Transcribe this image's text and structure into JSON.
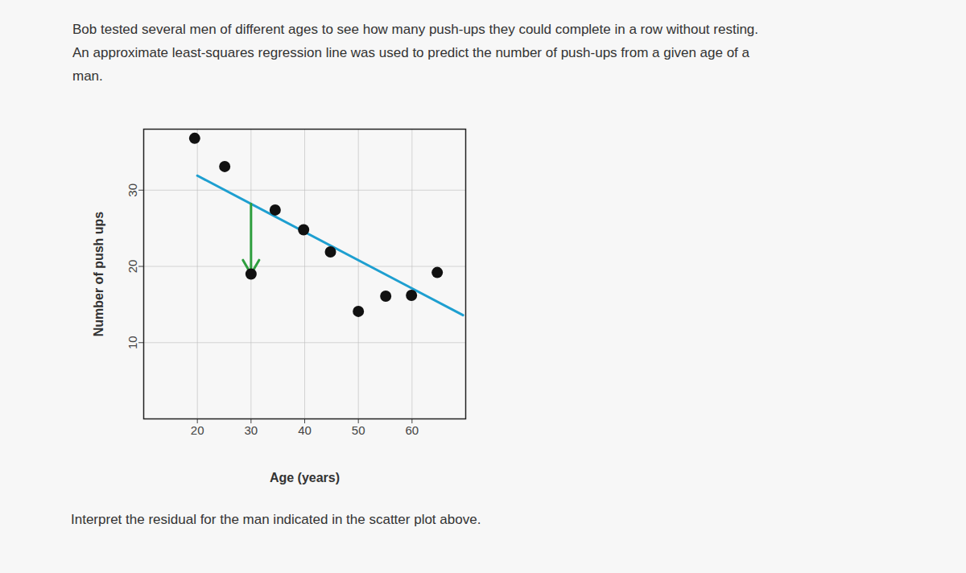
{
  "chart_data": {
    "type": "scatter",
    "title": "Bob tested several men of different ages to see how many push-ups they could complete in a row without resting. An approximate least-squares regression line was used to predict the number of push-ups from a given age of a man.",
    "caption": "Interpret the residual for the man indicated in the scatter plot above.",
    "x_label": "Age (years)",
    "y_label": "Number of push ups",
    "x": [
      19.5,
      25.1,
      30,
      34.5,
      39.8,
      44.8,
      50,
      55.1,
      59.9,
      64.7
    ],
    "y": [
      36.8,
      33.1,
      19,
      27.4,
      24.8,
      21.9,
      14.1,
      16.1,
      16.2,
      19.2
    ],
    "color": "#111111",
    "marker": "dot",
    "xlim": [
      10,
      70
    ],
    "ylim": [
      0,
      38
    ],
    "xticks": [
      20,
      30,
      40,
      50,
      60
    ],
    "yticks": [
      10,
      20,
      30
    ],
    "grid": true,
    "regression_line": {
      "x": [
        20,
        69.5
      ],
      "y": [
        31.9,
        13.6
      ],
      "color": "#1e9fd0"
    },
    "residual": {
      "x": 30,
      "from": 28.2,
      "to": 19,
      "color": "#2e9e3e"
    }
  }
}
